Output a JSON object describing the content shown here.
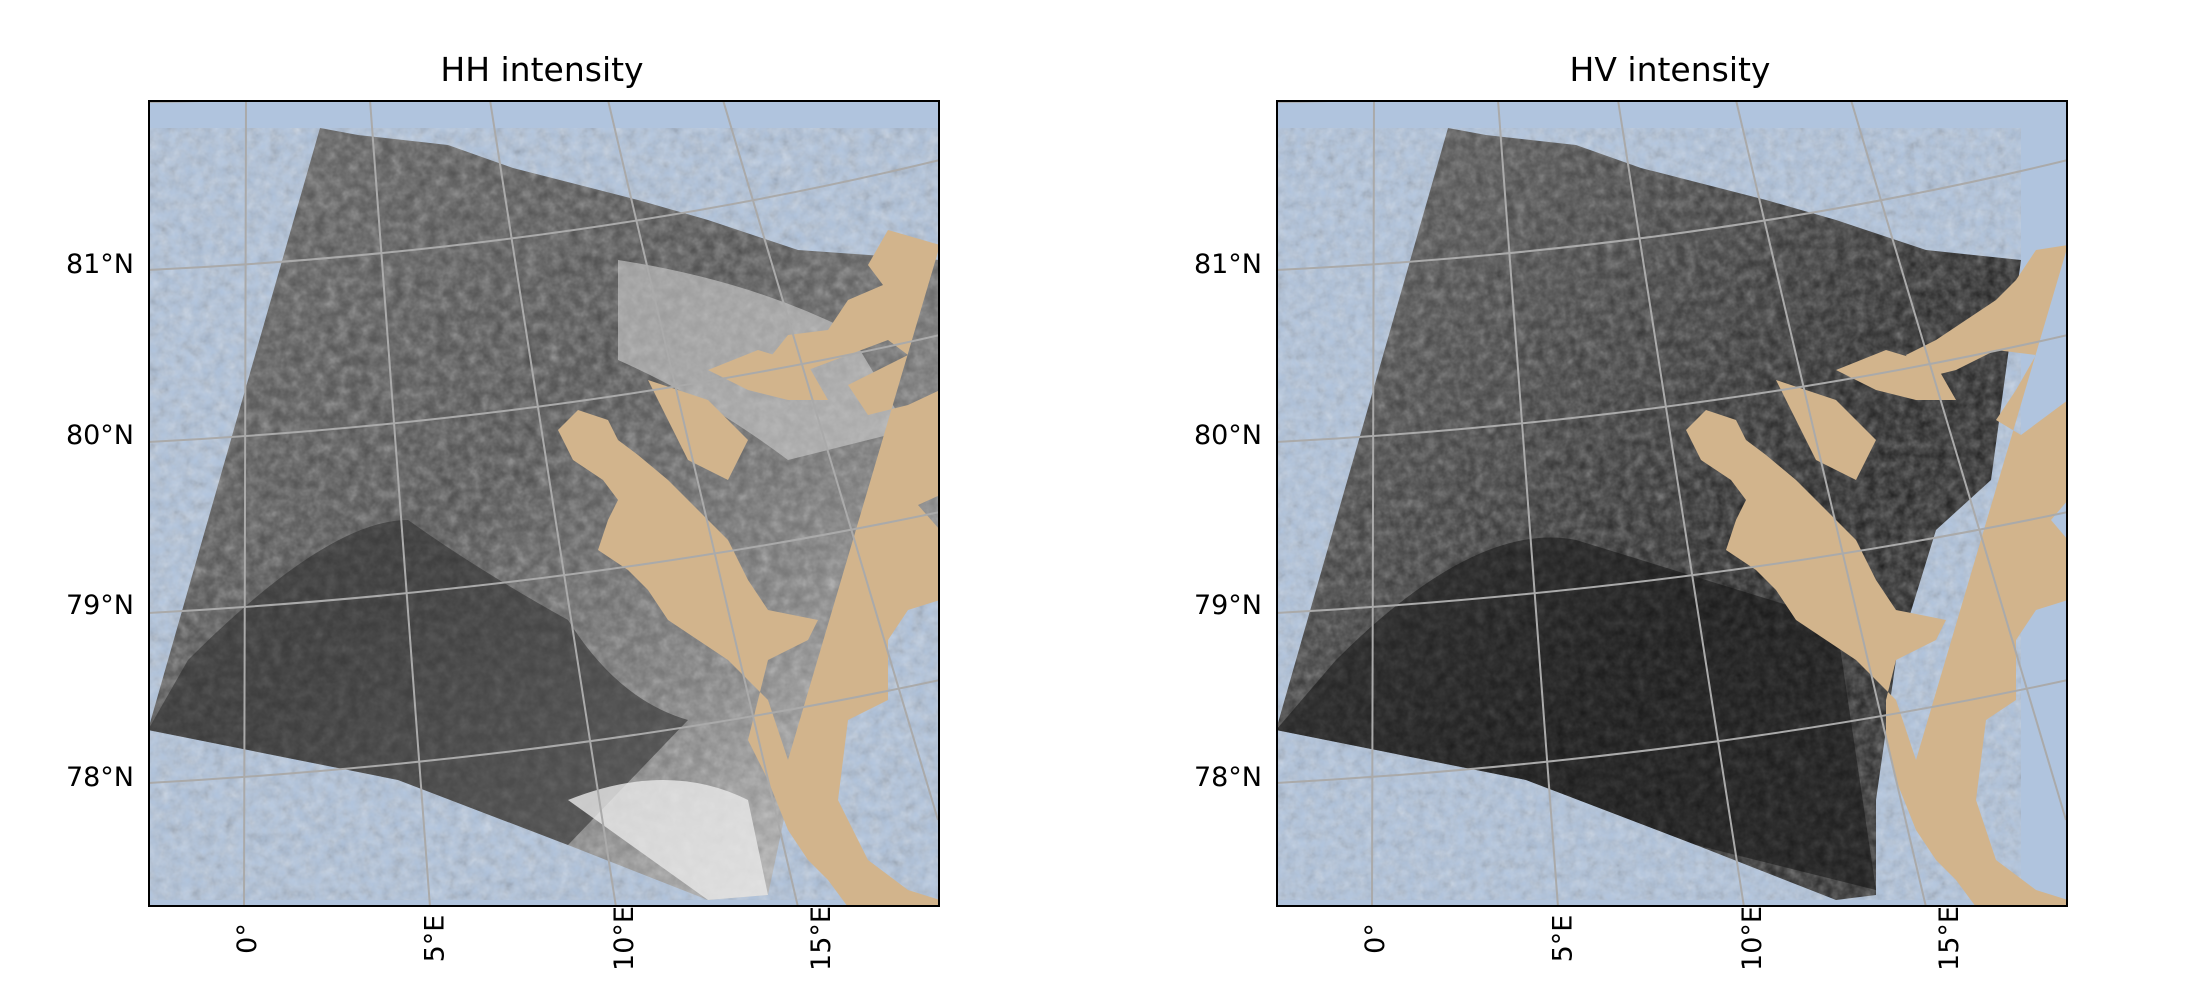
{
  "figure": {
    "panels": [
      {
        "id": "hh",
        "title": "HH intensity",
        "lat_labels": [
          "81°N",
          "80°N",
          "79°N",
          "78°N"
        ],
        "lon_labels": [
          "0°",
          "5°E",
          "10°E",
          "15°E"
        ]
      },
      {
        "id": "hv",
        "title": "HV intensity",
        "lat_labels": [
          "81°N",
          "80°N",
          "79°N",
          "78°N"
        ],
        "lon_labels": [
          "0°",
          "5°E",
          "10°E",
          "15°E"
        ]
      }
    ]
  },
  "colors": {
    "ocean": "#b0c4de",
    "land": "#d2b48c",
    "gridlines": "#aaaaaa",
    "frame": "#000000"
  }
}
